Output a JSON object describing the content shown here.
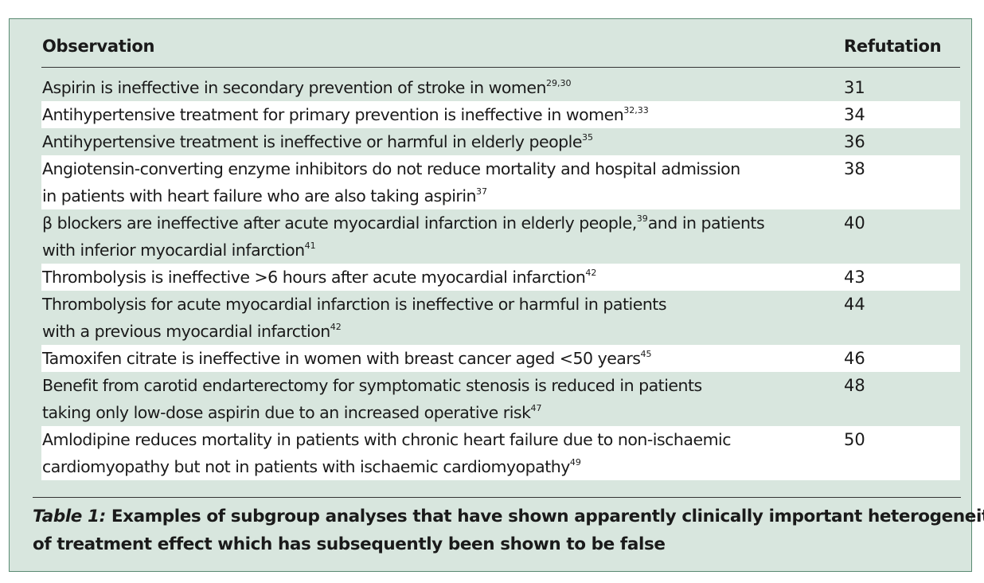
{
  "table": {
    "headers": {
      "observation": "Observation",
      "refutation": "Refutation"
    },
    "rows": [
      {
        "lines": [
          "Aspirin is ineffective in secondary prevention of stroke in women"
        ],
        "ref_sup": "29,30",
        "refutation": "31"
      },
      {
        "lines": [
          "Antihypertensive treatment for primary prevention is ineffective in women"
        ],
        "ref_sup": "32,33",
        "refutation": "34"
      },
      {
        "lines": [
          "Antihypertensive treatment is ineffective or harmful in elderly people"
        ],
        "ref_sup": "35",
        "refutation": "36"
      },
      {
        "lines": [
          "Angiotensin-converting enzyme inhibitors do not reduce mortality and hospital admission",
          " in patients with heart failure who are also taking aspirin"
        ],
        "ref_sup": "37",
        "refutation": "38"
      },
      {
        "lines": [
          "β blockers are ineffective after acute myocardial infarction in elderly people,",
          "and in patients",
          "with inferior myocardial infarction"
        ],
        "mid_sup": "39",
        "ref_sup": "41",
        "refutation": "40"
      },
      {
        "lines": [
          "Thrombolysis is ineffective >6 hours after acute myocardial infarction"
        ],
        "ref_sup": "42",
        "refutation": "43"
      },
      {
        "lines": [
          "Thrombolysis for acute myocardial infarction is ineffective or harmful in patients",
          "with a previous myocardial infarction"
        ],
        "ref_sup": "42",
        "refutation": "44"
      },
      {
        "lines": [
          "Tamoxifen citrate is ineffective in women with breast cancer aged <50 years"
        ],
        "ref_sup": "45",
        "refutation": "46"
      },
      {
        "lines": [
          "Benefit from carotid endarterectomy for symptomatic stenosis is reduced in patients",
          "taking only low-dose aspirin due to an increased operative risk"
        ],
        "ref_sup": "47",
        "refutation": "48"
      },
      {
        "lines": [
          "Amlodipine reduces mortality in patients with chronic heart failure due to non-ischaemic",
          "cardiomyopathy but not in patients with ischaemic cardiomyopathy"
        ],
        "ref_sup": "49",
        "refutation": "50"
      }
    ]
  },
  "caption": {
    "label": "Table 1:",
    "line1": " Examples of subgroup analyses that have shown apparently clinically important heterogeneity",
    "line2": "of treatment effect which has subsequently been shown to be false"
  },
  "colors": {
    "panel": "#d8e6de",
    "border": "#5a8a73",
    "row_alt": "#ffffff"
  }
}
